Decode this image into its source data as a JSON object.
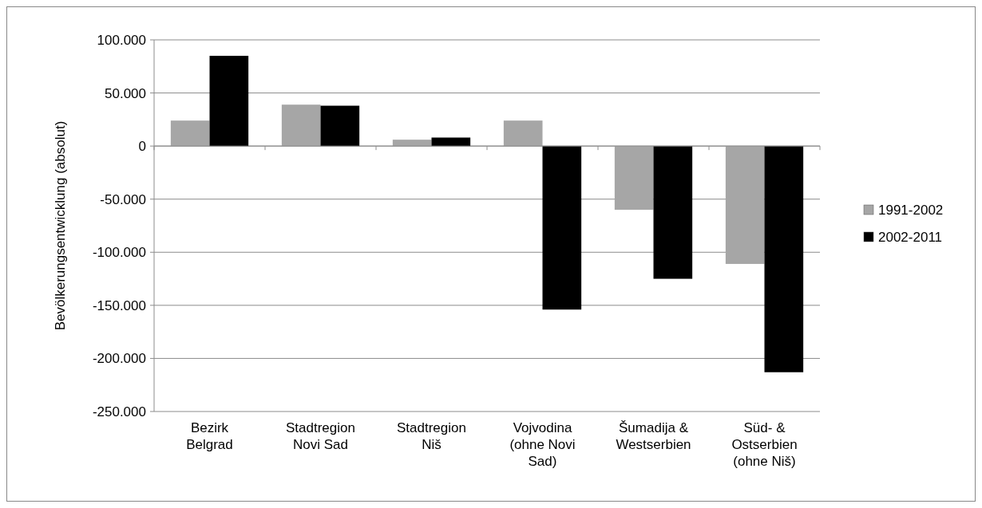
{
  "chart_data": {
    "type": "bar",
    "ylabel": "Bevölkerungsentwicklung (absolut)",
    "categories": [
      "Bezirk Belgrad",
      "Stadtregion Novi Sad",
      "Stadtregion Niš",
      "Vojvodina (ohne Novi Sad)",
      "Šumadija & Westserbien",
      "Süd- & Ostserbien (ohne Niš)"
    ],
    "series": [
      {
        "name": "1991-2002",
        "color": "#a6a6a6",
        "values": [
          24000,
          39000,
          6000,
          24000,
          -60000,
          -111000
        ]
      },
      {
        "name": "2002-2011",
        "color": "#000000",
        "values": [
          85000,
          38000,
          8000,
          -154000,
          -125000,
          -213000
        ]
      }
    ],
    "ylim": [
      -250000,
      100000
    ],
    "yticks": [
      {
        "value": -250000,
        "label": "-250.000"
      },
      {
        "value": -200000,
        "label": "-200.000"
      },
      {
        "value": -150000,
        "label": "-150.000"
      },
      {
        "value": -100000,
        "label": "-100.000"
      },
      {
        "value": -50000,
        "label": "-50.000"
      },
      {
        "value": 0,
        "label": "0"
      },
      {
        "value": 50000,
        "label": "50.000"
      },
      {
        "value": 100000,
        "label": "100.000"
      }
    ],
    "grid": "y",
    "legend": "right"
  }
}
